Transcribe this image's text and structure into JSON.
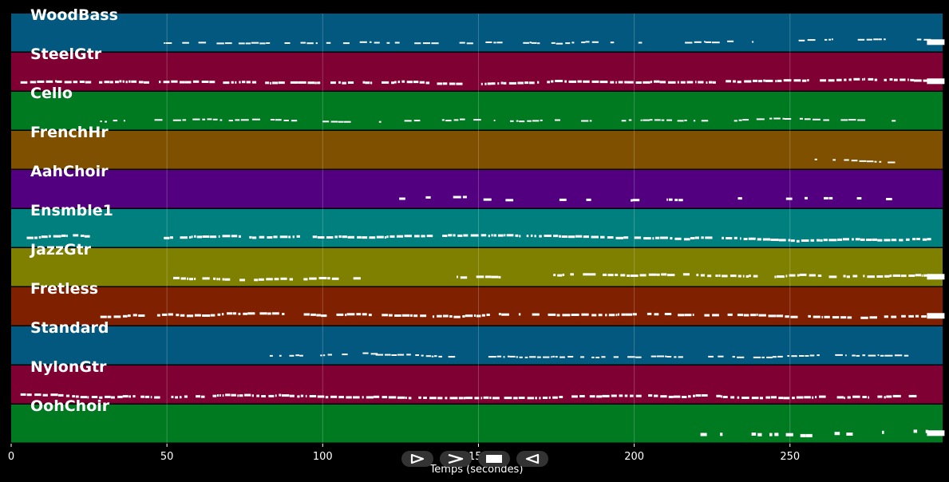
{
  "chart_data": {
    "type": "piano-roll",
    "xlabel": "Temps (secondes)",
    "xlim": [
      0,
      299
    ],
    "x_ticks": [
      0,
      50,
      100,
      150,
      200,
      250
    ],
    "grid": true,
    "tracks": [
      {
        "name": "WoodBass",
        "color": "#02587f",
        "spans": [
          [
            49,
            295
          ]
        ],
        "density": 0.55,
        "thick": 2,
        "end_block": true
      },
      {
        "name": "SteelGtr",
        "color": "#7f0033",
        "spans": [
          [
            3,
            295
          ]
        ],
        "density": 0.9,
        "thick": 3,
        "end_block": true
      },
      {
        "name": "Cello",
        "color": "#007a21",
        "spans": [
          [
            24,
            290
          ]
        ],
        "density": 0.5,
        "thick": 2,
        "end_block": false
      },
      {
        "name": "FrenchHr",
        "color": "#7f5000",
        "spans": [
          [
            256,
            290
          ]
        ],
        "density": 0.5,
        "thick": 2,
        "end_block": false
      },
      {
        "name": "AahChoir",
        "color": "#52007f",
        "spans": [
          [
            119,
            145
          ],
          [
            150,
            159
          ],
          [
            176,
            219
          ],
          [
            224,
            290
          ]
        ],
        "density": 0.3,
        "thick": 3,
        "end_block": false
      },
      {
        "name": "Ensmble1",
        "color": "#007f7f",
        "spans": [
          [
            5,
            25
          ],
          [
            49,
            218
          ],
          [
            218,
            295
          ]
        ],
        "density": 0.9,
        "thick": 3,
        "end_block": false
      },
      {
        "name": "JazzGtr",
        "color": "#7f7f00",
        "spans": [
          [
            52,
            117
          ],
          [
            143,
            295
          ]
        ],
        "density": 0.75,
        "thick": 3,
        "end_block": true
      },
      {
        "name": "Fretless",
        "color": "#7f2000",
        "spans": [
          [
            26,
            295
          ]
        ],
        "density": 0.8,
        "thick": 3,
        "end_block": true
      },
      {
        "name": "Standard",
        "color": "#02587f",
        "spans": [
          [
            83,
            117
          ],
          [
            117,
            290
          ]
        ],
        "density": 0.7,
        "thick": 2,
        "end_block": false
      },
      {
        "name": "NylonGtr",
        "color": "#7f0033",
        "spans": [
          [
            3,
            290
          ]
        ],
        "density": 0.9,
        "thick": 3,
        "end_block": false
      },
      {
        "name": "OohChoir",
        "color": "#007a21",
        "spans": [
          [
            220,
            295
          ]
        ],
        "density": 0.35,
        "thick": 4,
        "end_block": true
      }
    ]
  },
  "controls": [
    {
      "name": "play-icon"
    },
    {
      "name": "fast-forward-icon"
    },
    {
      "name": "stop-icon"
    },
    {
      "name": "rewind-icon"
    }
  ]
}
